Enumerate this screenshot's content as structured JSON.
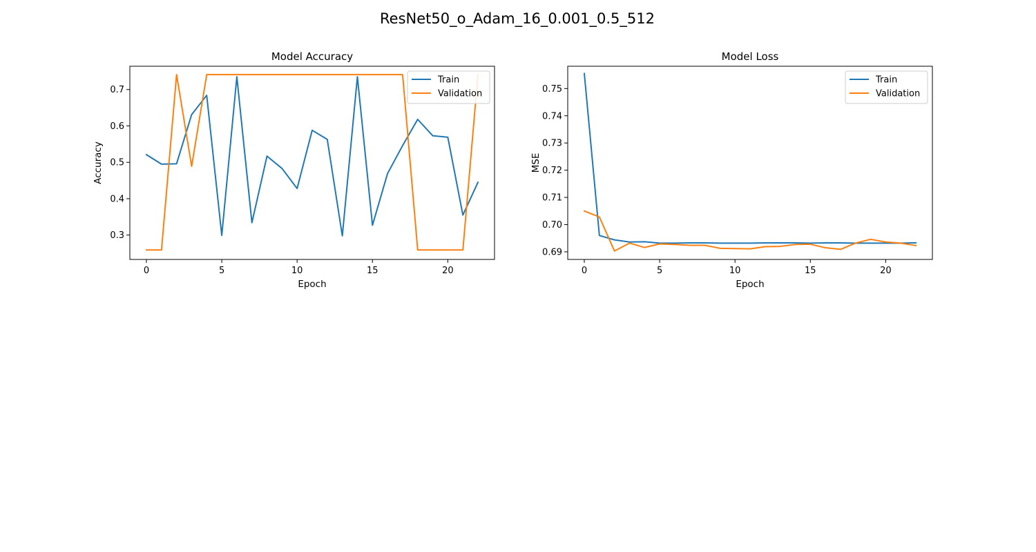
{
  "figure": {
    "title": "ResNet50_o_Adam_16_0.001_0.5_512"
  },
  "chart_data": [
    {
      "type": "line",
      "title": "Model Accuracy",
      "xlabel": "Epoch",
      "ylabel": "Accuracy",
      "xlim": [
        -1.1,
        23.1
      ],
      "ylim": [
        0.233,
        0.764
      ],
      "xticks": [
        0,
        5,
        10,
        15,
        20
      ],
      "yticks": [
        0.3,
        0.4,
        0.5,
        0.6,
        0.7
      ],
      "ytick_labels": [
        "0.3",
        "0.4",
        "0.5",
        "0.6",
        "0.7"
      ],
      "grid": false,
      "legend": "top-right",
      "x": [
        0,
        1,
        2,
        3,
        4,
        5,
        6,
        7,
        8,
        9,
        10,
        11,
        12,
        13,
        14,
        15,
        16,
        17,
        18,
        19,
        20,
        21,
        22
      ],
      "series": [
        {
          "name": "Train",
          "color": "#1f77b4",
          "values": [
            0.521,
            0.495,
            0.496,
            0.631,
            0.684,
            0.299,
            0.735,
            0.334,
            0.517,
            0.483,
            0.428,
            0.588,
            0.563,
            0.298,
            0.735,
            0.327,
            0.469,
            0.546,
            0.618,
            0.573,
            0.569,
            0.355,
            0.445
          ]
        },
        {
          "name": "Validation",
          "color": "#ff7f0e",
          "values": [
            0.259,
            0.259,
            0.741,
            0.489,
            0.741,
            0.741,
            0.741,
            0.741,
            0.741,
            0.741,
            0.741,
            0.741,
            0.741,
            0.741,
            0.741,
            0.741,
            0.741,
            0.741,
            0.259,
            0.259,
            0.259,
            0.259,
            0.741
          ]
        }
      ]
    },
    {
      "type": "line",
      "title": "Model Loss",
      "xlabel": "Epoch",
      "ylabel": "MSE",
      "xlim": [
        -1.1,
        23.1
      ],
      "ylim": [
        0.6872,
        0.7582
      ],
      "xticks": [
        0,
        5,
        10,
        15,
        20
      ],
      "yticks": [
        0.69,
        0.7,
        0.71,
        0.72,
        0.73,
        0.74,
        0.75
      ],
      "ytick_labels": [
        "0.69",
        "0.70",
        "0.71",
        "0.72",
        "0.73",
        "0.74",
        "0.75"
      ],
      "grid": false,
      "legend": "top-right",
      "x": [
        0,
        1,
        2,
        3,
        4,
        5,
        6,
        7,
        8,
        9,
        10,
        11,
        12,
        13,
        14,
        15,
        16,
        17,
        18,
        19,
        20,
        21,
        22
      ],
      "series": [
        {
          "name": "Train",
          "color": "#1f77b4",
          "values": [
            0.7555,
            0.696,
            0.6944,
            0.6936,
            0.6937,
            0.6932,
            0.6932,
            0.6933,
            0.6933,
            0.6932,
            0.6932,
            0.6932,
            0.6933,
            0.6933,
            0.6933,
            0.6932,
            0.6933,
            0.6933,
            0.6932,
            0.6932,
            0.6932,
            0.6932,
            0.6933
          ]
        },
        {
          "name": "Validation",
          "color": "#ff7f0e",
          "values": [
            0.705,
            0.7028,
            0.6903,
            0.6932,
            0.6916,
            0.6929,
            0.6927,
            0.6924,
            0.6924,
            0.6913,
            0.6912,
            0.6911,
            0.6919,
            0.692,
            0.6927,
            0.6928,
            0.6915,
            0.6909,
            0.6932,
            0.6946,
            0.6936,
            0.6932,
            0.6923
          ]
        }
      ]
    }
  ]
}
